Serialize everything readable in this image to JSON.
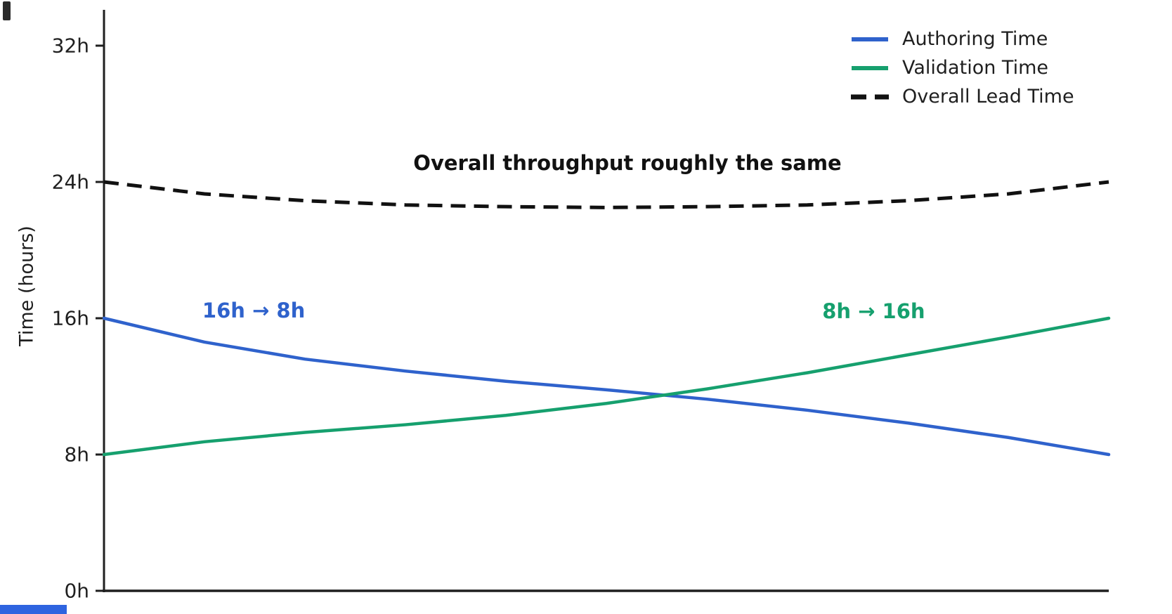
{
  "chart_data": {
    "type": "line",
    "title": "",
    "xlabel": "",
    "ylabel": "Time (hours)",
    "x_range": [
      0,
      1
    ],
    "ylim": [
      0,
      34
    ],
    "grid": false,
    "legend_position": "upper right",
    "background": "#ffffff",
    "axis_color": "#1f1f1f",
    "yticks": [
      {
        "value": 0,
        "label": "0h"
      },
      {
        "value": 8,
        "label": "8h"
      },
      {
        "value": 16,
        "label": "16h"
      },
      {
        "value": 24,
        "label": "24h"
      },
      {
        "value": 32,
        "label": "32h"
      }
    ],
    "x": [
      0,
      0.1,
      0.2,
      0.3,
      0.4,
      0.5,
      0.6,
      0.7,
      0.8,
      0.9,
      1
    ],
    "series": [
      {
        "name": "Authoring Time",
        "color": "#2f62cc",
        "style": "solid",
        "values": [
          16,
          14.6,
          13.6,
          12.9,
          12.3,
          11.8,
          11.25,
          10.6,
          9.85,
          9.0,
          8.0
        ]
      },
      {
        "name": "Validation Time",
        "color": "#16a06e",
        "style": "solid",
        "values": [
          8,
          8.75,
          9.3,
          9.75,
          10.3,
          11.0,
          11.85,
          12.8,
          13.85,
          14.9,
          16.0
        ]
      },
      {
        "name": "Overall Lead Time",
        "color": "#111111",
        "style": "dashed",
        "values": [
          24,
          23.3,
          22.9,
          22.65,
          22.55,
          22.5,
          22.55,
          22.65,
          22.9,
          23.3,
          24
        ]
      }
    ],
    "annotations": [
      {
        "text": "Overall throughput roughly the same",
        "color": "#111111",
        "x": 0.521,
        "y": 25.1
      },
      {
        "text": "16h → 8h",
        "color": "#2f62cc",
        "x": 0.149,
        "y": 16.45
      },
      {
        "text": "8h → 16h",
        "color": "#16a06e",
        "x": 0.766,
        "y": 16.4
      }
    ]
  },
  "artifacts": {
    "top_left_mark_color": "#2b2b2b",
    "progress_bar_color": "#2e64e0"
  }
}
